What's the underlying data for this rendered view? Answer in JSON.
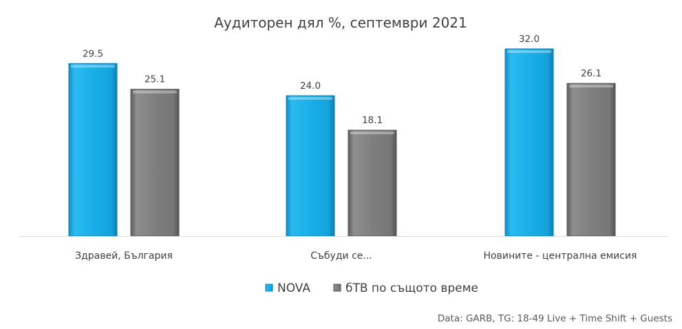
{
  "chart_data": {
    "type": "bar",
    "title": "Аудиторен дял %, септември 2021",
    "categories": [
      "Здравей, България",
      "Събуди се...",
      "Новините - централна емисия"
    ],
    "series": [
      {
        "name": "NOVA",
        "values": [
          "29.5",
          "24.0",
          "32.0"
        ],
        "color": "#1AAEE8"
      },
      {
        "name": "бТВ по същото време",
        "values": [
          "25.1",
          "18.1",
          "26.1"
        ],
        "color": "#7F7F7F"
      }
    ],
    "ylim": [
      0,
      32
    ],
    "grid": false,
    "legend_position": "bottom-center",
    "source_note": "Data: GARB, TG: 18-49 Live + Time Shift + Guests"
  }
}
